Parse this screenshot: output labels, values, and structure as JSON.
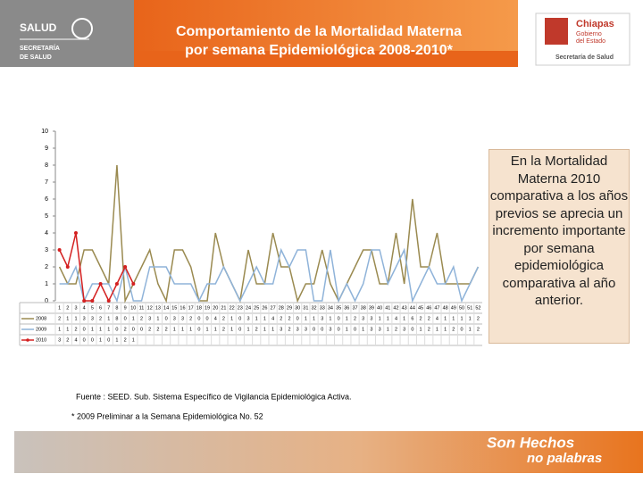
{
  "header": {
    "left_logo": {
      "name": "SALUD",
      "sub": [
        "SECRETARÍA",
        "DE SALUD"
      ]
    },
    "title_lines": [
      "Comportamiento de la Mortalidad Materna",
      "por semana Epidemiológica 2008-2010*"
    ],
    "right_logo": {
      "name": "Chiapas",
      "sub": [
        "Gobierno",
        "del Estado"
      ],
      "dept": "Secretaría de Salud"
    }
  },
  "chart_data": {
    "type": "line",
    "categories": [
      1,
      2,
      3,
      4,
      5,
      6,
      7,
      8,
      9,
      10,
      11,
      12,
      13,
      14,
      15,
      16,
      17,
      18,
      19,
      20,
      21,
      22,
      23,
      24,
      25,
      26,
      27,
      28,
      29,
      30,
      31,
      32,
      33,
      34,
      35,
      36,
      37,
      38,
      39,
      40,
      41,
      42,
      43,
      44,
      45,
      46,
      47,
      48,
      49,
      50,
      51,
      52
    ],
    "series": [
      {
        "name": "2008",
        "color": "#9a8a50",
        "marker": false,
        "values": [
          2,
          1,
          1,
          3,
          3,
          2,
          1,
          8,
          0,
          1,
          2,
          3,
          1,
          0,
          3,
          3,
          2,
          0,
          0,
          4,
          2,
          1,
          0,
          3,
          1,
          1,
          4,
          2,
          2,
          0,
          1,
          1,
          3,
          1,
          0,
          1,
          2,
          3,
          3,
          1,
          1,
          4,
          1,
          6,
          2,
          2,
          4,
          1,
          1,
          1,
          1,
          2
        ]
      },
      {
        "name": "2009",
        "color": "#8fb3d9",
        "marker": false,
        "values": [
          1,
          1,
          2,
          0,
          1,
          1,
          1,
          0,
          2,
          0,
          0,
          2,
          2,
          2,
          1,
          1,
          1,
          0,
          1,
          1,
          2,
          1,
          0,
          1,
          2,
          1,
          1,
          3,
          2,
          3,
          3,
          0,
          0,
          3,
          0,
          1,
          0,
          1,
          3,
          3,
          1,
          2,
          3,
          0,
          1,
          2,
          1,
          1,
          2,
          0,
          1,
          2
        ]
      },
      {
        "name": "2010",
        "color": "#d42020",
        "marker": true,
        "values": [
          3,
          2,
          4,
          0,
          0,
          1,
          0,
          1,
          2,
          1,
          null,
          null,
          null,
          null,
          null,
          null,
          null,
          null,
          null,
          null,
          null,
          null,
          null,
          null,
          null,
          null,
          null,
          null,
          null,
          null,
          null,
          null,
          null,
          null,
          null,
          null,
          null,
          null,
          null,
          null,
          null,
          null,
          null,
          null,
          null,
          null,
          null,
          null,
          null,
          null,
          null,
          null
        ]
      }
    ],
    "ylim": [
      0,
      10
    ],
    "yticks": [
      0,
      1,
      2,
      3,
      4,
      5,
      6,
      7,
      8,
      9,
      10
    ],
    "grid": false
  },
  "side_note": "En la Mortalidad Materna  2010 comparativa a los años previos se aprecia un incremento importante por semana epidemiológica comparativa al año anterior.",
  "footnotes": [
    "Fuente :  SEED.  Sub. Sistema Específico de Vigilancia Epidemiológica Activa.",
    "*  2009  Preliminar a la Semana Epidemiológica No.  52"
  ],
  "footer": {
    "slogan_lines": [
      "Son Hechos",
      "no palabras"
    ]
  }
}
